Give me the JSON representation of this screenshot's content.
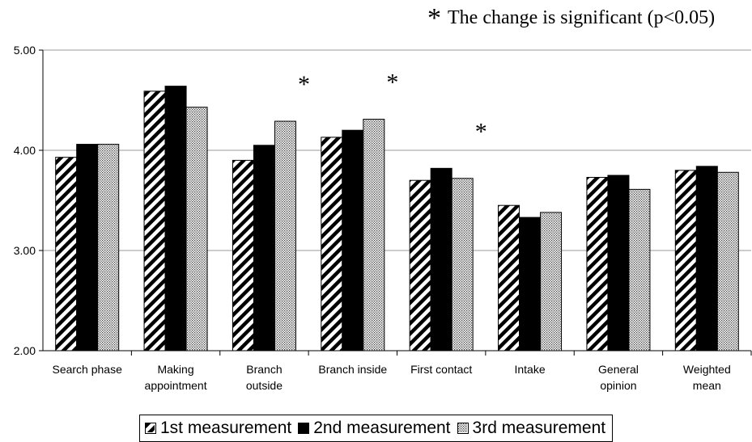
{
  "significance_note": {
    "symbol": "*",
    "text": "The change is significant (p<0.05)"
  },
  "chart_data": {
    "type": "bar",
    "categories": [
      [
        "Search phase"
      ],
      [
        "Making",
        "appointment"
      ],
      [
        "Branch",
        "outside"
      ],
      [
        "Branch inside"
      ],
      [
        "First contact"
      ],
      [
        "Intake"
      ],
      [
        "General",
        "opinion"
      ],
      [
        "Weighted",
        "mean"
      ]
    ],
    "series": [
      {
        "name": "1st measurement",
        "pattern": "diagonal-hatch",
        "values": [
          3.93,
          4.59,
          3.9,
          4.13,
          3.7,
          3.45,
          3.73,
          3.8
        ]
      },
      {
        "name": "2nd measurement",
        "pattern": "solid-black",
        "values": [
          4.06,
          4.64,
          4.05,
          4.2,
          3.82,
          3.33,
          3.75,
          3.84
        ]
      },
      {
        "name": "3rd measurement",
        "pattern": "dots",
        "values": [
          4.06,
          4.43,
          4.29,
          4.31,
          3.72,
          3.38,
          3.61,
          3.78
        ]
      }
    ],
    "significant_categories": [
      2,
      3,
      4
    ],
    "y_ticks": [
      "2.00",
      "3.00",
      "4.00",
      "5.00"
    ],
    "ylim": [
      2,
      5
    ],
    "grid": true,
    "legend_position": "bottom",
    "title": "",
    "xlabel": "",
    "ylabel": ""
  }
}
